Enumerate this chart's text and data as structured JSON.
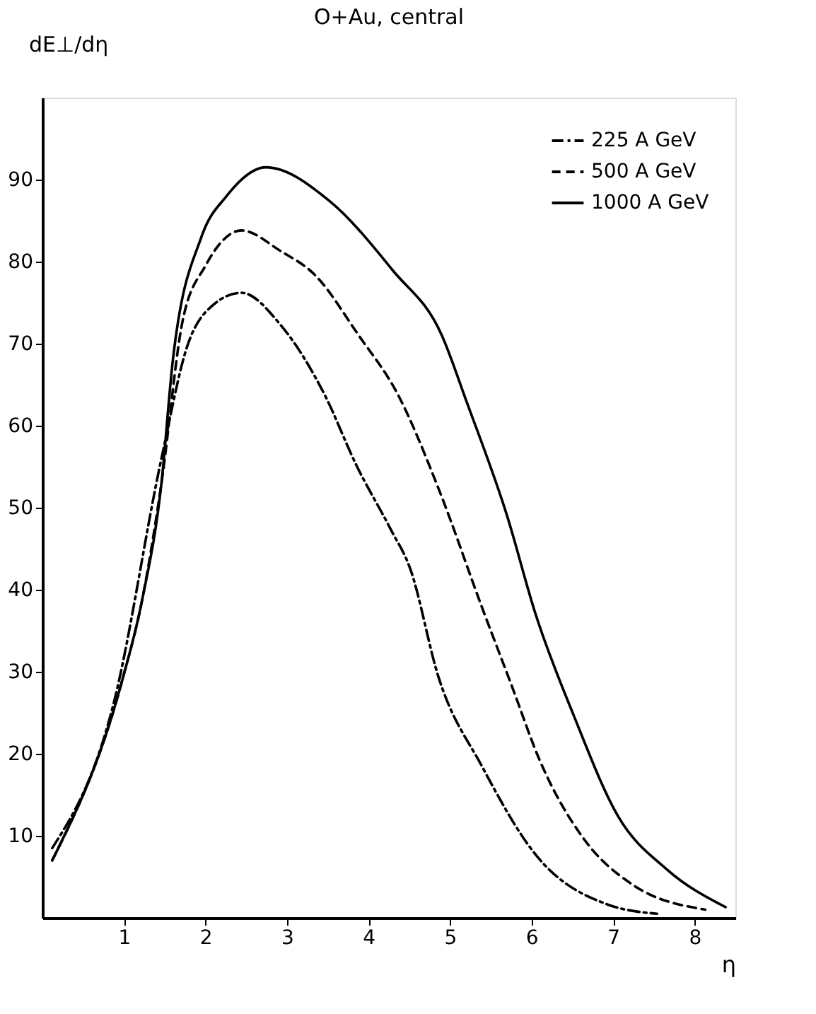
{
  "chart_data": {
    "type": "line",
    "title": "O+Au, central",
    "xlabel": "η",
    "ylabel": "dE⊥/dη",
    "xlim": [
      0,
      8.5
    ],
    "ylim": [
      0,
      100
    ],
    "xticks": [
      1,
      2,
      3,
      4,
      5,
      6,
      7,
      8
    ],
    "yticks": [
      10,
      20,
      30,
      40,
      50,
      60,
      70,
      80,
      90
    ],
    "grid": false,
    "legend": "top right",
    "marker": "none",
    "series": [
      {
        "name": "225 A GeV",
        "color": "#000000",
        "line_style": "dashdot",
        "x": [
          0.12,
          0.87,
          1.46,
          1.78,
          2.08,
          2.44,
          2.92,
          3.46,
          3.85,
          4.27,
          4.51,
          4.86,
          5.39,
          6.05,
          6.94,
          7.54
        ],
        "values": [
          8.5,
          26,
          56,
          69.8,
          74.6,
          76.2,
          72.3,
          63.8,
          55.2,
          47.4,
          42.6,
          29.3,
          18.5,
          7.7,
          1.6,
          0.5
        ]
      },
      {
        "name": "500 A GeV",
        "color": "#000000",
        "line_style": "dashed",
        "x": [
          0.12,
          0.98,
          1.22,
          1.46,
          1.72,
          2.0,
          2.44,
          2.92,
          3.34,
          3.88,
          4.36,
          4.86,
          5.39,
          5.76,
          6.1,
          6.65,
          7.23,
          8.13
        ],
        "values": [
          7,
          29,
          38.6,
          53,
          72.8,
          79.5,
          83.8,
          81.3,
          78.4,
          71,
          63.8,
          52.3,
          37.9,
          28.2,
          19.2,
          9.5,
          4.1,
          1.0
        ]
      },
      {
        "name": "1000 A GeV",
        "color": "#000000",
        "line_style": "solid",
        "x": [
          0.12,
          0.98,
          1.22,
          1.46,
          1.6,
          1.95,
          2.26,
          2.74,
          3.52,
          4.3,
          4.9,
          5.2,
          5.7,
          6.05,
          6.52,
          7.06,
          7.66,
          8.38
        ],
        "values": [
          7,
          29,
          38.6,
          53,
          68,
          83,
          88,
          91.5,
          87.4,
          78.9,
          71,
          63,
          49,
          37,
          24.6,
          12.4,
          5.9,
          1.3
        ]
      }
    ]
  }
}
